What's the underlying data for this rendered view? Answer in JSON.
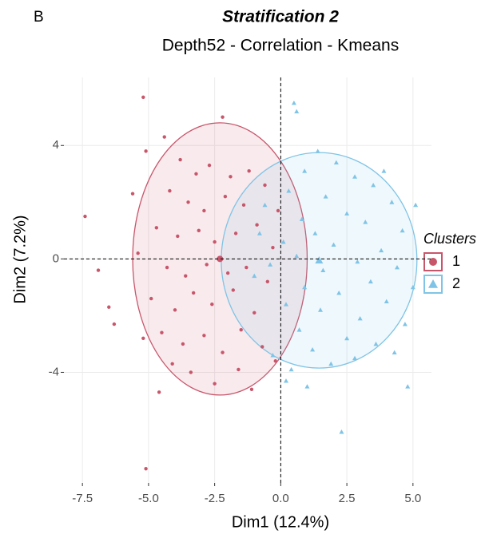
{
  "panel_label": "B",
  "chart_data": {
    "type": "scatter",
    "title": "Stratification 2",
    "subtitle": "Depth52 -  Correlation - Kmeans",
    "x_label": "Dim1 (12.4%)",
    "y_label": "Dim2 (7.2%)",
    "xlim": [
      -8.2,
      5.7
    ],
    "ylim": [
      -7.9,
      6.4
    ],
    "xticks": [
      -7.5,
      {
        "value": -5,
        "label": "-5.0"
      },
      -2.5,
      {
        "value": 0,
        "label": "0.0"
      },
      2.5,
      {
        "value": 5,
        "label": "5.0"
      }
    ],
    "yticks": [
      -4,
      0,
      4
    ],
    "grid": true,
    "hline": 0,
    "vline": 0,
    "legend_title": "Clusters",
    "legend_position": "right",
    "series": [
      {
        "name": "1",
        "color": "#c8566b",
        "shape": "circle",
        "x": [
          -5.2,
          -5.1,
          -7.4,
          -6.9,
          -6.5,
          -6.3,
          -4.6,
          -2.2,
          -4.4,
          -5.1,
          -3.8,
          -3.2,
          -2.7,
          -1.9,
          -1.2,
          -4.2,
          -3.5,
          -2.9,
          -2.1,
          -1.4,
          -0.6,
          -4.7,
          -3.9,
          -3.1,
          -2.5,
          -1.7,
          -0.9,
          -0.3,
          -5.4,
          -4.3,
          -3.6,
          -2.8,
          -2.0,
          -1.3,
          -0.5,
          -4.9,
          -4.0,
          -3.3,
          -2.6,
          -1.8,
          -1.0,
          -4.5,
          -3.7,
          -2.9,
          -2.2,
          -1.5,
          -0.7,
          -3.4,
          -2.5,
          -1.6,
          -0.2,
          -4.1,
          -5.6,
          -5.2,
          -0.1,
          -1.1
        ],
        "y": [
          5.7,
          -7.4,
          1.5,
          -0.4,
          -1.7,
          -2.3,
          -4.7,
          5.0,
          4.3,
          3.8,
          3.5,
          3.0,
          3.3,
          2.9,
          3.1,
          2.4,
          2.0,
          1.7,
          2.2,
          1.9,
          2.6,
          1.1,
          0.8,
          1.0,
          0.6,
          0.9,
          1.2,
          0.4,
          0.2,
          -0.3,
          -0.6,
          -0.2,
          -0.5,
          -0.3,
          -0.8,
          -1.4,
          -1.8,
          -1.2,
          -1.6,
          -1.1,
          -1.9,
          -2.6,
          -3.0,
          -2.7,
          -3.3,
          -2.5,
          -3.1,
          -4.0,
          -4.4,
          -3.9,
          -3.6,
          -3.7,
          2.3,
          -2.8,
          1.7,
          -4.6
        ],
        "ellipse": {
          "cx": -2.3,
          "cy": 0,
          "rx": 3.3,
          "ry": 4.8
        }
      },
      {
        "name": "2",
        "color": "#7fc4e6",
        "shape": "triangle",
        "x": [
          0.5,
          2.3,
          5.1,
          4.8,
          0.2,
          0.6,
          1.4,
          2.1,
          0.9,
          2.8,
          3.5,
          0.3,
          1.7,
          4.2,
          2.5,
          0.8,
          3.2,
          4.6,
          1.3,
          0.1,
          2.0,
          3.8,
          0.6,
          2.9,
          4.4,
          1.6,
          -0.4,
          3.4,
          0.9,
          2.2,
          4.0,
          0.2,
          1.5,
          3.0,
          4.7,
          0.7,
          2.5,
          1.2,
          3.6,
          -0.3,
          1.9,
          0.4,
          2.8,
          -0.6,
          -0.8,
          -1.0,
          3.9,
          1.0,
          4.3,
          5.0
        ],
        "y": [
          5.5,
          -6.1,
          1.9,
          -4.5,
          -4.3,
          5.2,
          3.8,
          3.4,
          3.1,
          2.9,
          2.6,
          2.4,
          2.2,
          2.0,
          1.6,
          1.4,
          1.3,
          1.0,
          0.9,
          0.6,
          0.5,
          0.3,
          0.1,
          -0.1,
          -0.3,
          -0.4,
          -0.2,
          -0.8,
          -1.0,
          -1.2,
          -1.5,
          -1.6,
          -1.8,
          -2.1,
          -2.3,
          -2.5,
          -2.8,
          -3.2,
          -3.0,
          -3.4,
          -3.7,
          -3.9,
          -3.5,
          1.9,
          0.9,
          -0.6,
          3.1,
          -4.5,
          -3.3,
          -1.0
        ],
        "ellipse": {
          "cx": 1.45,
          "cy": -0.05,
          "rx": 3.7,
          "ry": 3.8
        }
      }
    ]
  }
}
